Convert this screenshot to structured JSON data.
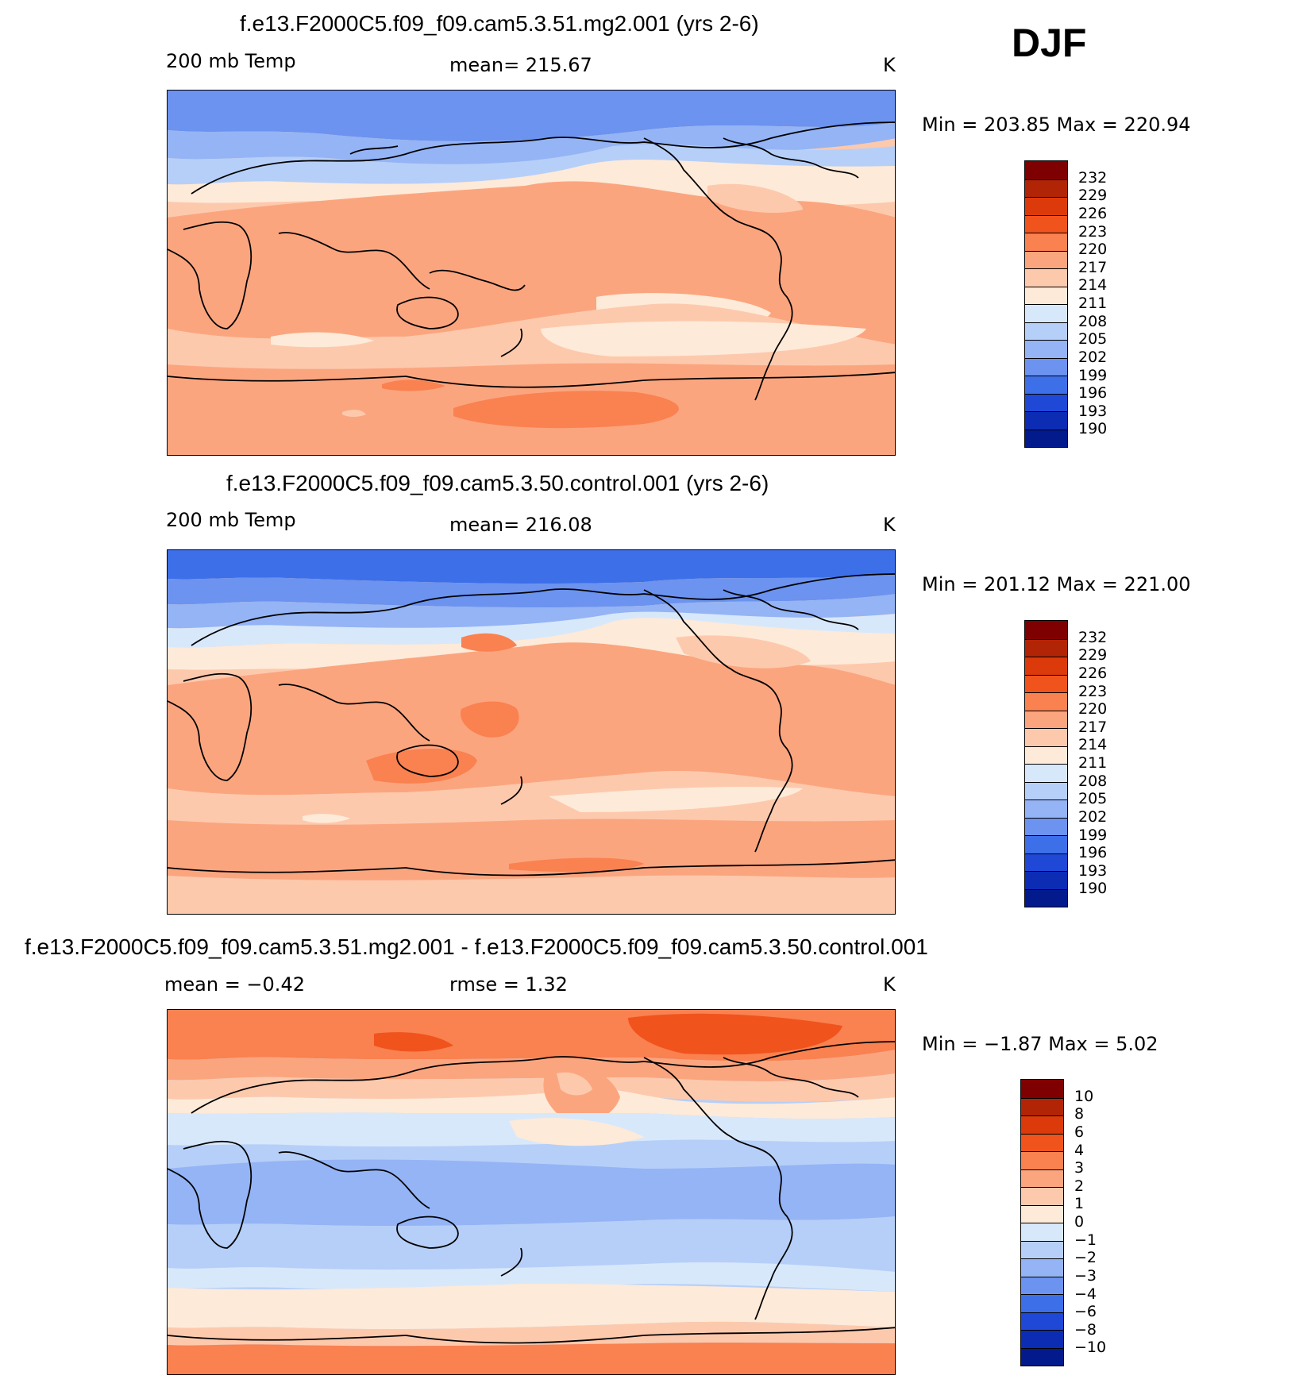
{
  "season_label": "DJF",
  "units_hint": "K",
  "panels": [
    {
      "title": "f.e13.F2000C5.f09_f09.cam5.3.51.mg2.001 (yrs 2-6)",
      "left_label": "200 mb Temp",
      "center_label": "mean=  215.67",
      "right_label": "K",
      "minmax": "Min  =  203.85  Max  =  220.94",
      "colorbar_labels": [
        "232",
        "229",
        "226",
        "223",
        "220",
        "217",
        "214",
        "211",
        "208",
        "205",
        "202",
        "199",
        "196",
        "193",
        "190"
      ]
    },
    {
      "title": "f.e13.F2000C5.f09_f09.cam5.3.50.control.001 (yrs 2-6)",
      "left_label": "200 mb Temp",
      "center_label": "mean=  216.08",
      "right_label": "K",
      "minmax": "Min  =  201.12  Max  =  221.00",
      "colorbar_labels": [
        "232",
        "229",
        "226",
        "223",
        "220",
        "217",
        "214",
        "211",
        "208",
        "205",
        "202",
        "199",
        "196",
        "193",
        "190"
      ]
    },
    {
      "title": "f.e13.F2000C5.f09_f09.cam5.3.51.mg2.001 - f.e13.F2000C5.f09_f09.cam5.3.50.control.001",
      "left_label": "mean  =    −0.42",
      "center_label": "rmse  =      1.32",
      "right_label": "K",
      "minmax": "Min  =    −1.87  Max  =      5.02",
      "colorbar_labels": [
        "10",
        "8",
        "6",
        "4",
        "3",
        "2",
        "1",
        "0",
        "−1",
        "−2",
        "−3",
        "−4",
        "−6",
        "−8",
        "−10"
      ]
    }
  ],
  "colors": {
    "palette": [
      "#7f0000",
      "#b22406",
      "#dc3a0a",
      "#f1531d",
      "#fa8150",
      "#fba57f",
      "#fdc9ad",
      "#feead8",
      "#d8e8fb",
      "#b6cff8",
      "#94b4f5",
      "#6b93ef",
      "#3d6fe9",
      "#1f48d7",
      "#0c2cb3",
      "#021a8c"
    ]
  }
}
